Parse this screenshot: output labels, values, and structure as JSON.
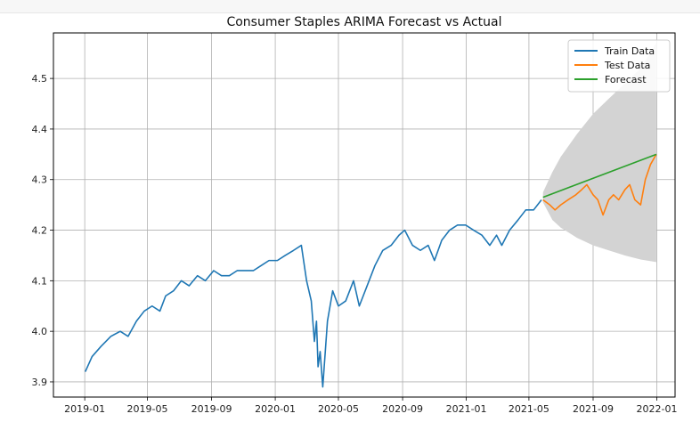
{
  "chart_data": {
    "type": "line",
    "title": "Consumer Staples ARIMA Forecast vs Actual",
    "xlabel": "",
    "ylabel": "",
    "x_ticks": [
      "2019-01",
      "2019-05",
      "2019-09",
      "2020-01",
      "2020-05",
      "2020-09",
      "2021-01",
      "2021-05",
      "2021-09",
      "2022-01"
    ],
    "y_ticks": [
      "3.9",
      "4.0",
      "4.1",
      "4.2",
      "4.3",
      "4.4",
      "4.5"
    ],
    "xlim": [
      "2018-11-02",
      "2022-02-05"
    ],
    "ylim": [
      3.87,
      4.59
    ],
    "grid": true,
    "legend_position": "top-right",
    "series": [
      {
        "name": "Train Data",
        "color": "#1f77b4",
        "x": [
          "2019-01-02",
          "2019-01-15",
          "2019-02-01",
          "2019-02-20",
          "2019-03-10",
          "2019-03-25",
          "2019-04-10",
          "2019-04-25",
          "2019-05-10",
          "2019-05-25",
          "2019-06-05",
          "2019-06-20",
          "2019-07-05",
          "2019-07-20",
          "2019-08-05",
          "2019-08-20",
          "2019-09-05",
          "2019-09-20",
          "2019-10-05",
          "2019-10-20",
          "2019-11-05",
          "2019-11-20",
          "2019-12-05",
          "2019-12-20",
          "2020-01-05",
          "2020-01-20",
          "2020-02-05",
          "2020-02-20",
          "2020-03-01",
          "2020-03-10",
          "2020-03-16",
          "2020-03-20",
          "2020-03-23",
          "2020-03-27",
          "2020-04-01",
          "2020-04-10",
          "2020-04-20",
          "2020-05-01",
          "2020-05-15",
          "2020-05-30",
          "2020-06-10",
          "2020-06-25",
          "2020-07-10",
          "2020-07-25",
          "2020-08-10",
          "2020-08-25",
          "2020-09-05",
          "2020-09-20",
          "2020-10-05",
          "2020-10-20",
          "2020-11-01",
          "2020-11-15",
          "2020-11-30",
          "2020-12-15",
          "2020-12-31",
          "2021-01-15",
          "2021-01-31",
          "2021-02-15",
          "2021-02-28",
          "2021-03-10",
          "2021-03-25",
          "2021-04-10",
          "2021-04-25",
          "2021-05-10",
          "2021-05-25"
        ],
        "values": [
          3.92,
          3.95,
          3.97,
          3.99,
          4.0,
          3.99,
          4.02,
          4.04,
          4.05,
          4.04,
          4.07,
          4.08,
          4.1,
          4.09,
          4.11,
          4.1,
          4.12,
          4.11,
          4.11,
          4.12,
          4.12,
          4.12,
          4.13,
          4.14,
          4.14,
          4.15,
          4.16,
          4.17,
          4.1,
          4.06,
          3.98,
          4.02,
          3.93,
          3.96,
          3.89,
          4.02,
          4.08,
          4.05,
          4.06,
          4.1,
          4.05,
          4.09,
          4.13,
          4.16,
          4.17,
          4.19,
          4.2,
          4.17,
          4.16,
          4.17,
          4.14,
          4.18,
          4.2,
          4.21,
          4.21,
          4.2,
          4.19,
          4.17,
          4.19,
          4.17,
          4.2,
          4.22,
          4.24,
          4.24,
          4.26
        ]
      },
      {
        "name": "Test Data",
        "color": "#ff7f0e",
        "x": [
          "2021-05-28",
          "2021-06-10",
          "2021-06-20",
          "2021-07-01",
          "2021-07-15",
          "2021-07-30",
          "2021-08-10",
          "2021-08-20",
          "2021-09-01",
          "2021-09-10",
          "2021-09-20",
          "2021-10-01",
          "2021-10-10",
          "2021-10-20",
          "2021-11-01",
          "2021-11-10",
          "2021-11-20",
          "2021-12-01",
          "2021-12-10",
          "2021-12-20",
          "2021-12-31"
        ],
        "values": [
          4.26,
          4.25,
          4.24,
          4.25,
          4.26,
          4.27,
          4.28,
          4.29,
          4.27,
          4.26,
          4.23,
          4.26,
          4.27,
          4.26,
          4.28,
          4.29,
          4.26,
          4.25,
          4.3,
          4.33,
          4.35
        ]
      },
      {
        "name": "Forecast",
        "color": "#2ca02c",
        "x": [
          "2021-05-28",
          "2021-12-31"
        ],
        "values": [
          4.265,
          4.35
        ]
      }
    ],
    "confidence_interval": {
      "color": "#d3d3d3",
      "x": [
        "2021-05-28",
        "2021-06-15",
        "2021-07-01",
        "2021-08-01",
        "2021-09-01",
        "2021-10-01",
        "2021-11-01",
        "2021-12-01",
        "2021-12-31"
      ],
      "lower": [
        4.255,
        4.22,
        4.205,
        4.185,
        4.17,
        4.16,
        4.15,
        4.142,
        4.137
      ],
      "upper": [
        4.275,
        4.315,
        4.345,
        4.39,
        4.43,
        4.46,
        4.49,
        4.52,
        4.57
      ]
    }
  }
}
